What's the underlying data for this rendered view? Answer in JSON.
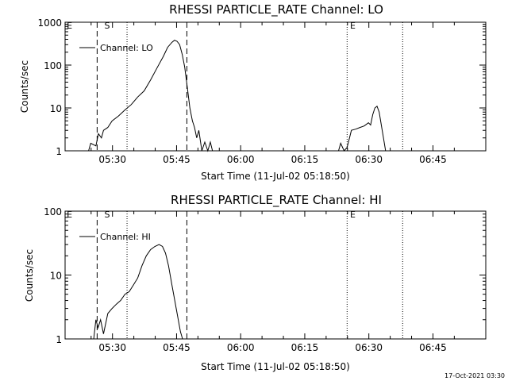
{
  "chart_data": [
    {
      "type": "line",
      "title": "RHESSI PARTICLE_RATE Channel: LO",
      "xlabel": "Start Time (11-Jul-02 05:18:50)",
      "ylabel": "Counts/sec",
      "x_tick_labels": [
        "05:30",
        "05:45",
        "06:00",
        "06:15",
        "06:30",
        "06:45"
      ],
      "y_tick_labels": [
        "1",
        "10",
        "100",
        "1000"
      ],
      "y_scale": "log",
      "ylim": [
        1,
        1000
      ],
      "xlim_minutes_after_start": [
        0,
        79.5
      ],
      "legend_text": "Channel: LO",
      "legend_position": "top-left",
      "marker_labels": [
        {
          "text": "E",
          "x_min": 0.2
        },
        {
          "text": "S",
          "x_min": 9.0
        },
        {
          "text": "E",
          "x_min": 66.5
        }
      ],
      "vertical_lines": [
        {
          "x_min": 7.5,
          "style": "dashed"
        },
        {
          "x_min": 14.5,
          "style": "dotted"
        },
        {
          "x_min": 28.5,
          "style": "dashed"
        },
        {
          "x_min": 66.0,
          "style": "dotted"
        },
        {
          "x_min": 79.0,
          "style": "dotted"
        }
      ],
      "series": [
        {
          "x": [
            5.5,
            6.0,
            7.2,
            7.8,
            8.5,
            9.0,
            10.0,
            11.0,
            12.5,
            14.0,
            15.5,
            17.0,
            18.5,
            20.0,
            21.5,
            23.0,
            24.0,
            25.0,
            25.6,
            26.2,
            26.8,
            27.4,
            28.0,
            28.6,
            29.2,
            29.8,
            30.3,
            30.8,
            31.3,
            32.0,
            32.7,
            33.4,
            34.0,
            34.5,
            36.0,
            64.0,
            64.5,
            65.3,
            66.0,
            67.0,
            68.0,
            69.0,
            70.0,
            71.0,
            71.5,
            72.0,
            72.5,
            73.0,
            73.5,
            74.0,
            74.5,
            75.0
          ],
          "y": [
            1,
            1.5,
            1.3,
            2.5,
            2.0,
            3.0,
            3.5,
            5.0,
            6.5,
            9.0,
            12,
            18,
            25,
            45,
            85,
            160,
            260,
            340,
            380,
            360,
            300,
            180,
            90,
            30,
            10,
            5,
            3.5,
            2,
            3,
            1,
            1.6,
            1,
            1.6,
            1,
            1,
            1,
            1.5,
            1,
            1.2,
            3,
            3.2,
            3.5,
            3.8,
            4.5,
            4,
            7,
            10,
            11,
            8,
            4,
            2,
            1
          ]
        }
      ]
    },
    {
      "type": "line",
      "title": "RHESSI PARTICLE_RATE Channel: HI",
      "xlabel": "Start Time (11-Jul-02 05:18:50)",
      "ylabel": "Counts/sec",
      "x_tick_labels": [
        "05:30",
        "05:45",
        "06:00",
        "06:15",
        "06:30",
        "06:45"
      ],
      "y_tick_labels": [
        "1",
        "10",
        "100"
      ],
      "y_scale": "log",
      "ylim": [
        1,
        100
      ],
      "xlim_minutes_after_start": [
        0,
        79.5
      ],
      "legend_text": "Channel: HI",
      "legend_position": "top-left",
      "marker_labels": [
        {
          "text": "E",
          "x_min": 0.2
        },
        {
          "text": "S",
          "x_min": 9.0
        },
        {
          "text": "E",
          "x_min": 66.5
        }
      ],
      "vertical_lines": [
        {
          "x_min": 7.5,
          "style": "dashed"
        },
        {
          "x_min": 14.5,
          "style": "dotted"
        },
        {
          "x_min": 28.5,
          "style": "dashed"
        },
        {
          "x_min": 66.0,
          "style": "dotted"
        },
        {
          "x_min": 79.0,
          "style": "dotted"
        }
      ],
      "series": [
        {
          "x": [
            6.7,
            7.2,
            7.7,
            8.3,
            9.0,
            10.0,
            11.0,
            12.0,
            13.0,
            14.0,
            15.0,
            16.0,
            17.0,
            18.0,
            19.0,
            20.0,
            21.0,
            22.0,
            22.8,
            23.5,
            24.2,
            25.0,
            26.0,
            27.0,
            27.5
          ],
          "y": [
            1,
            2.0,
            1.5,
            2.0,
            1.2,
            2.5,
            3.0,
            3.5,
            4.0,
            5.0,
            5.5,
            7,
            9,
            14,
            20,
            25,
            28,
            30,
            28,
            22,
            14,
            7,
            3,
            1.3,
            1
          ]
        }
      ]
    }
  ],
  "timestamp": "17-Oct-2021 03:30"
}
